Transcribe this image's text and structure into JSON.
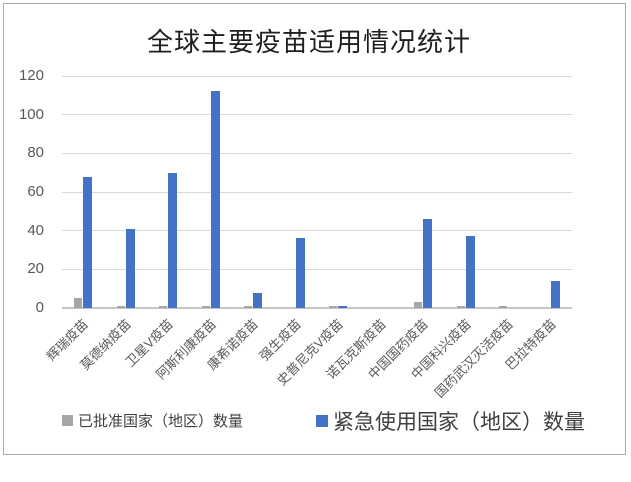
{
  "chart_data": {
    "type": "bar",
    "title": "全球主要疫苗适用情况统计",
    "categories": [
      "辉瑞疫苗",
      "莫德纳疫苗",
      "卫星V疫苗",
      "阿斯利康疫苗",
      "康希诺疫苗",
      "强生疫苗",
      "史普尼克V疫苗",
      "诺瓦克斯疫苗",
      "中国国药疫苗",
      "中国科兴疫苗",
      "国药武汉灭活疫苗",
      "巴拉特疫苗"
    ],
    "series": [
      {
        "name": "已批准国家（地区）数量",
        "color": "#a6a6a6",
        "values": [
          5,
          1,
          1,
          1,
          1,
          0,
          1,
          0,
          3,
          1,
          1,
          0
        ]
      },
      {
        "name": "紧急使用国家（地区）数量",
        "color": "#4472c4",
        "values": [
          68,
          41,
          70,
          112,
          8,
          36,
          1,
          0,
          46,
          37,
          0,
          14
        ]
      }
    ],
    "xlabel": "",
    "ylabel": "",
    "ylim": [
      0,
      120
    ],
    "yticks": [
      0,
      20,
      40,
      60,
      80,
      100,
      120
    ],
    "grid": true,
    "legend_position": "bottom"
  },
  "style": {
    "grid_color": "#d9d9d9",
    "axis_line_color": "#c6c6c6",
    "tick_text_color": "#595959",
    "legend_text_color": "#404040",
    "approved_series_color": "#a6a6a6",
    "emergency_series_color": "#4472c4"
  }
}
